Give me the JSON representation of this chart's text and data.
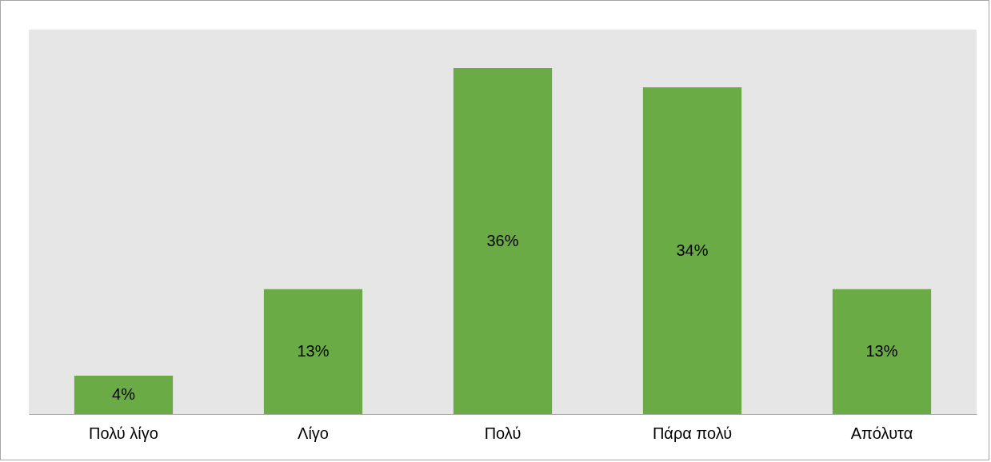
{
  "chart_data": {
    "type": "bar",
    "categories": [
      "Πολύ λίγο",
      "Λίγο",
      "Πολύ",
      "Πάρα πολύ",
      "Απόλυτα"
    ],
    "values": [
      4,
      13,
      36,
      34,
      13
    ],
    "value_labels": [
      "4%",
      "13%",
      "36%",
      "34%",
      "13%"
    ],
    "color": "#6aab45",
    "grid": false
  }
}
